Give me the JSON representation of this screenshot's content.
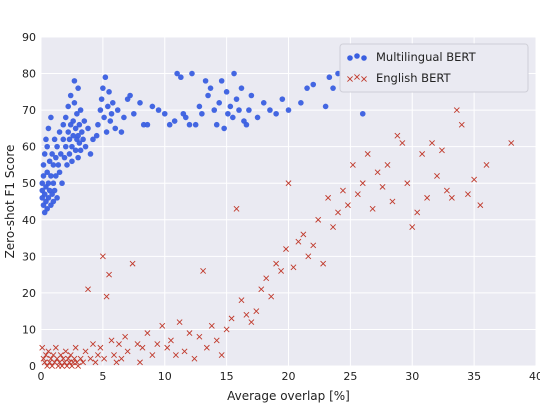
{
  "chart_data": {
    "type": "scatter",
    "title": "",
    "xlabel": "Average overlap [%]",
    "ylabel": "Zero-shot F1 Score",
    "xlim": [
      0,
      40
    ],
    "ylim": [
      0,
      90
    ],
    "xticks": [
      0,
      5,
      10,
      15,
      20,
      25,
      30,
      35,
      40
    ],
    "yticks": [
      0,
      10,
      20,
      30,
      40,
      50,
      60,
      70,
      80,
      90
    ],
    "grid": true,
    "legend_position": "top-right",
    "series": [
      {
        "name": "Multilingual BERT",
        "marker": "circle",
        "color": "#3a5fe0",
        "points": [
          [
            0.1,
            46
          ],
          [
            0.1,
            48
          ],
          [
            0.1,
            50
          ],
          [
            0.2,
            44
          ],
          [
            0.2,
            52
          ],
          [
            0.2,
            55
          ],
          [
            0.3,
            42
          ],
          [
            0.3,
            47
          ],
          [
            0.3,
            58
          ],
          [
            0.4,
            45
          ],
          [
            0.4,
            49
          ],
          [
            0.4,
            62
          ],
          [
            0.5,
            43
          ],
          [
            0.5,
            53
          ],
          [
            0.5,
            60
          ],
          [
            0.6,
            46
          ],
          [
            0.6,
            50
          ],
          [
            0.6,
            65
          ],
          [
            0.7,
            48
          ],
          [
            0.7,
            56
          ],
          [
            0.8,
            44
          ],
          [
            0.8,
            52
          ],
          [
            0.8,
            68
          ],
          [
            0.9,
            47
          ],
          [
            0.9,
            58
          ],
          [
            1.0,
            45
          ],
          [
            1.0,
            50
          ],
          [
            1.0,
            55
          ],
          [
            1.1,
            48
          ],
          [
            1.1,
            62
          ],
          [
            1.2,
            52
          ],
          [
            1.2,
            57
          ],
          [
            1.3,
            46
          ],
          [
            1.3,
            60
          ],
          [
            1.4,
            55
          ],
          [
            1.5,
            53
          ],
          [
            1.5,
            64
          ],
          [
            1.6,
            58
          ],
          [
            1.7,
            50
          ],
          [
            1.8,
            62
          ],
          [
            1.8,
            66
          ],
          [
            1.9,
            57
          ],
          [
            2.0,
            60
          ],
          [
            2.0,
            68
          ],
          [
            2.1,
            55
          ],
          [
            2.2,
            64
          ],
          [
            2.2,
            71
          ],
          [
            2.3,
            58
          ],
          [
            2.3,
            62
          ],
          [
            2.4,
            66
          ],
          [
            2.4,
            74
          ],
          [
            2.5,
            60
          ],
          [
            2.5,
            56
          ],
          [
            2.6,
            63
          ],
          [
            2.6,
            67
          ],
          [
            2.7,
            72
          ],
          [
            2.7,
            78
          ],
          [
            2.8,
            59
          ],
          [
            2.8,
            65
          ],
          [
            2.9,
            62
          ],
          [
            2.9,
            69
          ],
          [
            3.0,
            57
          ],
          [
            3.0,
            63
          ],
          [
            3.0,
            76
          ],
          [
            3.1,
            61
          ],
          [
            3.1,
            66
          ],
          [
            3.2,
            59
          ],
          [
            3.2,
            70
          ],
          [
            3.3,
            64
          ],
          [
            3.4,
            62
          ],
          [
            3.5,
            67
          ],
          [
            3.6,
            60
          ],
          [
            3.8,
            65
          ],
          [
            4.0,
            58
          ],
          [
            4.2,
            62
          ],
          [
            4.5,
            63
          ],
          [
            4.6,
            66
          ],
          [
            4.8,
            70
          ],
          [
            4.9,
            73
          ],
          [
            5.0,
            76
          ],
          [
            5.1,
            68
          ],
          [
            5.2,
            79
          ],
          [
            5.3,
            64
          ],
          [
            5.4,
            71
          ],
          [
            5.5,
            75
          ],
          [
            5.6,
            67
          ],
          [
            5.7,
            69
          ],
          [
            5.8,
            72
          ],
          [
            6.0,
            65
          ],
          [
            6.2,
            70
          ],
          [
            6.5,
            64
          ],
          [
            6.7,
            68
          ],
          [
            7.0,
            73
          ],
          [
            7.2,
            74
          ],
          [
            7.5,
            69
          ],
          [
            8.0,
            72
          ],
          [
            8.3,
            66
          ],
          [
            8.6,
            66
          ],
          [
            9.0,
            71
          ],
          [
            9.5,
            70
          ],
          [
            10.0,
            69
          ],
          [
            10.4,
            66
          ],
          [
            10.8,
            67
          ],
          [
            11.0,
            80
          ],
          [
            11.3,
            79
          ],
          [
            11.5,
            69
          ],
          [
            11.7,
            68
          ],
          [
            12.0,
            66
          ],
          [
            12.2,
            80
          ],
          [
            12.5,
            66
          ],
          [
            12.8,
            71
          ],
          [
            13.0,
            69
          ],
          [
            13.3,
            78
          ],
          [
            13.5,
            74
          ],
          [
            13.7,
            76
          ],
          [
            14.0,
            70
          ],
          [
            14.2,
            66
          ],
          [
            14.4,
            72
          ],
          [
            14.6,
            78
          ],
          [
            14.8,
            65
          ],
          [
            15.0,
            75
          ],
          [
            15.1,
            69
          ],
          [
            15.3,
            71
          ],
          [
            15.5,
            68
          ],
          [
            15.6,
            80
          ],
          [
            15.8,
            73
          ],
          [
            16.0,
            70
          ],
          [
            16.2,
            76
          ],
          [
            16.4,
            67
          ],
          [
            16.6,
            66
          ],
          [
            16.8,
            70
          ],
          [
            17.0,
            74
          ],
          [
            17.5,
            68
          ],
          [
            18.0,
            72
          ],
          [
            18.5,
            70
          ],
          [
            19.0,
            69
          ],
          [
            19.5,
            73
          ],
          [
            20.0,
            70
          ],
          [
            21.0,
            72
          ],
          [
            21.5,
            76
          ],
          [
            22.0,
            77
          ],
          [
            23.0,
            71
          ],
          [
            23.3,
            79
          ],
          [
            23.6,
            76
          ],
          [
            24.0,
            80
          ],
          [
            26.0,
            69
          ]
        ]
      },
      {
        "name": "English BERT",
        "marker": "x",
        "color": "#c0392b",
        "points": [
          [
            0.1,
            5
          ],
          [
            0.2,
            2
          ],
          [
            0.3,
            1
          ],
          [
            0.4,
            3
          ],
          [
            0.5,
            0
          ],
          [
            0.6,
            4
          ],
          [
            0.7,
            1
          ],
          [
            0.8,
            2
          ],
          [
            0.9,
            0
          ],
          [
            1.0,
            3
          ],
          [
            1.1,
            1
          ],
          [
            1.2,
            5
          ],
          [
            1.3,
            2
          ],
          [
            1.4,
            0
          ],
          [
            1.5,
            1
          ],
          [
            1.6,
            3
          ],
          [
            1.7,
            0
          ],
          [
            1.8,
            2
          ],
          [
            1.9,
            1
          ],
          [
            2.0,
            4
          ],
          [
            2.1,
            0
          ],
          [
            2.2,
            2
          ],
          [
            2.3,
            1
          ],
          [
            2.4,
            3
          ],
          [
            2.5,
            0
          ],
          [
            2.6,
            1
          ],
          [
            2.7,
            2
          ],
          [
            2.8,
            5
          ],
          [
            2.9,
            1
          ],
          [
            3.0,
            0
          ],
          [
            3.2,
            2
          ],
          [
            3.4,
            1
          ],
          [
            3.6,
            4
          ],
          [
            3.8,
            21
          ],
          [
            4.0,
            2
          ],
          [
            4.2,
            6
          ],
          [
            4.4,
            1
          ],
          [
            4.6,
            3
          ],
          [
            4.8,
            5
          ],
          [
            5.0,
            30
          ],
          [
            5.1,
            2
          ],
          [
            5.3,
            19
          ],
          [
            5.5,
            25
          ],
          [
            5.7,
            7
          ],
          [
            5.9,
            3
          ],
          [
            6.1,
            1
          ],
          [
            6.3,
            6
          ],
          [
            6.5,
            2
          ],
          [
            6.8,
            8
          ],
          [
            7.0,
            4
          ],
          [
            7.4,
            28
          ],
          [
            7.8,
            6
          ],
          [
            8.0,
            1
          ],
          [
            8.2,
            5
          ],
          [
            8.6,
            9
          ],
          [
            9.0,
            3
          ],
          [
            9.4,
            6
          ],
          [
            9.8,
            11
          ],
          [
            10.2,
            5
          ],
          [
            10.5,
            7
          ],
          [
            10.9,
            3
          ],
          [
            11.2,
            12
          ],
          [
            11.6,
            4
          ],
          [
            12.0,
            9
          ],
          [
            12.4,
            2
          ],
          [
            12.8,
            8
          ],
          [
            13.1,
            26
          ],
          [
            13.4,
            5
          ],
          [
            13.8,
            11
          ],
          [
            14.2,
            7
          ],
          [
            14.6,
            3
          ],
          [
            15.0,
            10
          ],
          [
            15.4,
            13
          ],
          [
            15.8,
            43
          ],
          [
            16.2,
            18
          ],
          [
            16.6,
            14
          ],
          [
            17.0,
            12
          ],
          [
            17.4,
            15
          ],
          [
            17.8,
            21
          ],
          [
            18.2,
            24
          ],
          [
            18.6,
            19
          ],
          [
            19.0,
            28
          ],
          [
            19.4,
            26
          ],
          [
            19.8,
            32
          ],
          [
            20.0,
            50
          ],
          [
            20.4,
            27
          ],
          [
            20.8,
            34
          ],
          [
            21.2,
            36
          ],
          [
            21.6,
            30
          ],
          [
            22.0,
            33
          ],
          [
            22.4,
            40
          ],
          [
            22.8,
            28
          ],
          [
            23.2,
            46
          ],
          [
            23.6,
            38
          ],
          [
            24.0,
            42
          ],
          [
            24.4,
            48
          ],
          [
            24.8,
            44
          ],
          [
            25.2,
            55
          ],
          [
            25.6,
            47
          ],
          [
            26.0,
            50
          ],
          [
            26.4,
            58
          ],
          [
            26.8,
            43
          ],
          [
            27.2,
            53
          ],
          [
            27.6,
            49
          ],
          [
            28.0,
            55
          ],
          [
            28.4,
            45
          ],
          [
            28.8,
            63
          ],
          [
            29.2,
            61
          ],
          [
            29.6,
            50
          ],
          [
            30.0,
            38
          ],
          [
            30.4,
            42
          ],
          [
            30.8,
            58
          ],
          [
            31.2,
            46
          ],
          [
            31.6,
            61
          ],
          [
            32.0,
            52
          ],
          [
            32.4,
            59
          ],
          [
            32.8,
            48
          ],
          [
            33.2,
            46
          ],
          [
            33.6,
            70
          ],
          [
            34.0,
            66
          ],
          [
            34.5,
            47
          ],
          [
            35.0,
            51
          ],
          [
            35.5,
            44
          ],
          [
            36.0,
            55
          ],
          [
            38.0,
            61
          ]
        ]
      }
    ]
  }
}
